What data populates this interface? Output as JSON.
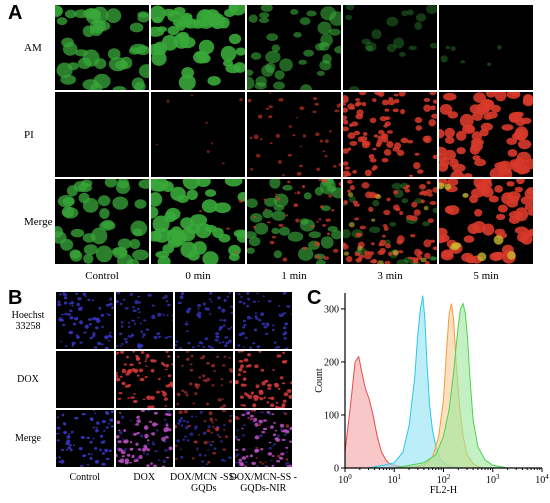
{
  "panelA": {
    "letter": "A",
    "rows": [
      "AM",
      "PI",
      "Merge"
    ],
    "columns": [
      "Control",
      "0 min",
      "1 min",
      "3 min",
      "5 min"
    ]
  },
  "panelB": {
    "letter": "B",
    "rows": [
      "Hoechst 33258",
      "DOX",
      "Merge"
    ],
    "columns": [
      "Control",
      "DOX",
      "DOX/MCN -SS-GQDs",
      "DOX/MCN-SS -GQDs-NIR"
    ]
  },
  "panelC": {
    "letter": "C",
    "chart_data": {
      "type": "area",
      "xlabel": "FL2-H",
      "ylabel": "Count",
      "xscale": "log",
      "xlim": [
        1,
        10000
      ],
      "ylim": [
        0,
        330
      ],
      "x_ticks": [
        "10^0",
        "10^1",
        "10^2",
        "10^3",
        "10^4"
      ],
      "y_ticks": [
        0,
        100,
        200,
        300
      ],
      "series": [
        {
          "color": "#e84a4a",
          "fill": "#f3a3a3",
          "x": [
            1,
            1.3,
            1.6,
            1.9,
            2.2,
            2.6,
            3.1,
            3.7,
            4.5,
            5.5,
            6.8,
            8,
            10,
            13,
            20,
            40,
            100
          ],
          "y": [
            30,
            120,
            200,
            210,
            180,
            150,
            130,
            100,
            60,
            30,
            15,
            8,
            5,
            3,
            2,
            1,
            0
          ]
        },
        {
          "color": "#2cc6e8",
          "fill": "#8fe3f4",
          "x": [
            3,
            6,
            10,
            15,
            20,
            26,
            30,
            34,
            38,
            42,
            46,
            52,
            60,
            70,
            85,
            100,
            130,
            200
          ],
          "y": [
            0,
            5,
            10,
            30,
            80,
            170,
            250,
            300,
            325,
            280,
            200,
            120,
            70,
            40,
            20,
            10,
            4,
            0
          ]
        },
        {
          "color": "#f59b3a",
          "fill": "#f9cc94",
          "x": [
            20,
            40,
            60,
            80,
            100,
            115,
            130,
            145,
            160,
            180,
            210,
            250,
            300,
            400,
            600
          ],
          "y": [
            0,
            5,
            20,
            60,
            130,
            220,
            290,
            310,
            280,
            200,
            120,
            60,
            25,
            8,
            0
          ]
        },
        {
          "color": "#4fd24f",
          "fill": "#9ce89c",
          "x": [
            10,
            40,
            70,
            100,
            130,
            160,
            190,
            220,
            250,
            280,
            310,
            350,
            400,
            500,
            700,
            1000,
            2000
          ],
          "y": [
            0,
            10,
            25,
            60,
            110,
            180,
            250,
            300,
            310,
            290,
            240,
            160,
            90,
            40,
            15,
            5,
            0
          ]
        }
      ]
    }
  }
}
